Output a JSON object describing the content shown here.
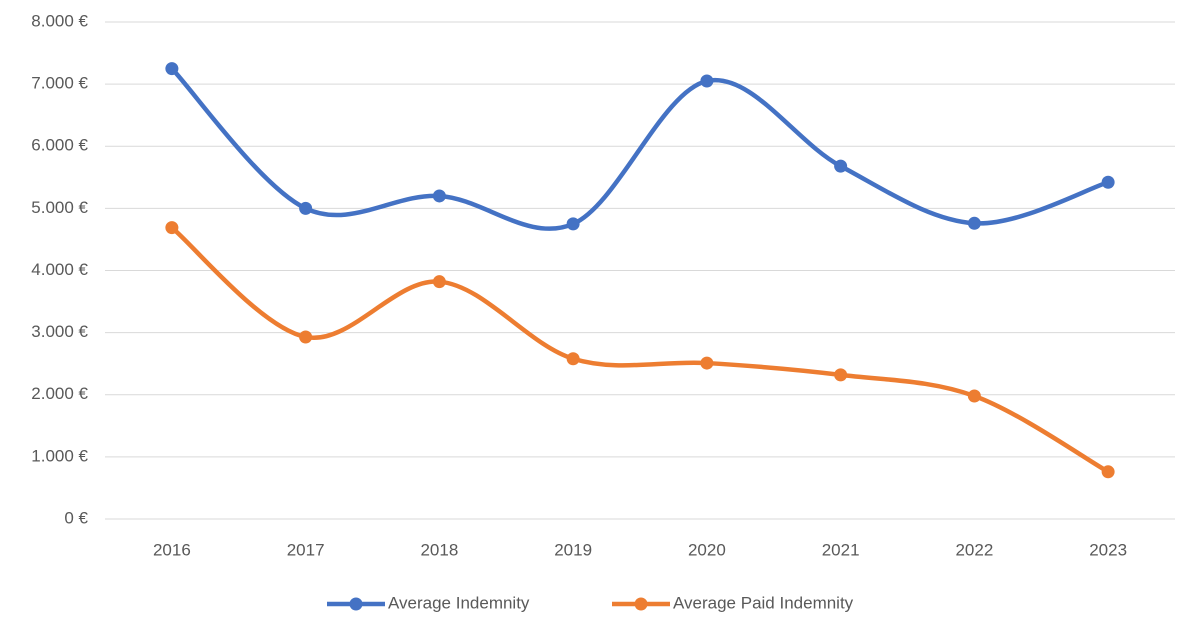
{
  "chart_data": {
    "type": "line",
    "smooth": true,
    "categories": [
      "2016",
      "2017",
      "2018",
      "2019",
      "2020",
      "2021",
      "2022",
      "2023"
    ],
    "series": [
      {
        "name": "Average Indemnity",
        "color": "#4472c4",
        "values": [
          7250,
          5000,
          5200,
          4750,
          7050,
          5680,
          4760,
          5420
        ]
      },
      {
        "name": "Average Paid Indemnity",
        "color": "#ed7d31",
        "values": [
          4690,
          2930,
          3820,
          2580,
          2510,
          2320,
          1980,
          760
        ]
      }
    ],
    "ylim": [
      0,
      8000
    ],
    "yticks": [
      {
        "value": 0,
        "label": "0 €"
      },
      {
        "value": 1000,
        "label": "1.000 €"
      },
      {
        "value": 2000,
        "label": "2.000 €"
      },
      {
        "value": 3000,
        "label": "3.000 €"
      },
      {
        "value": 4000,
        "label": "4.000 €"
      },
      {
        "value": 5000,
        "label": "5.000 €"
      },
      {
        "value": 6000,
        "label": "6.000 €"
      },
      {
        "value": 7000,
        "label": "7.000 €"
      },
      {
        "value": 8000,
        "label": "8.000 €"
      }
    ],
    "grid": true,
    "legend": "bottom"
  }
}
